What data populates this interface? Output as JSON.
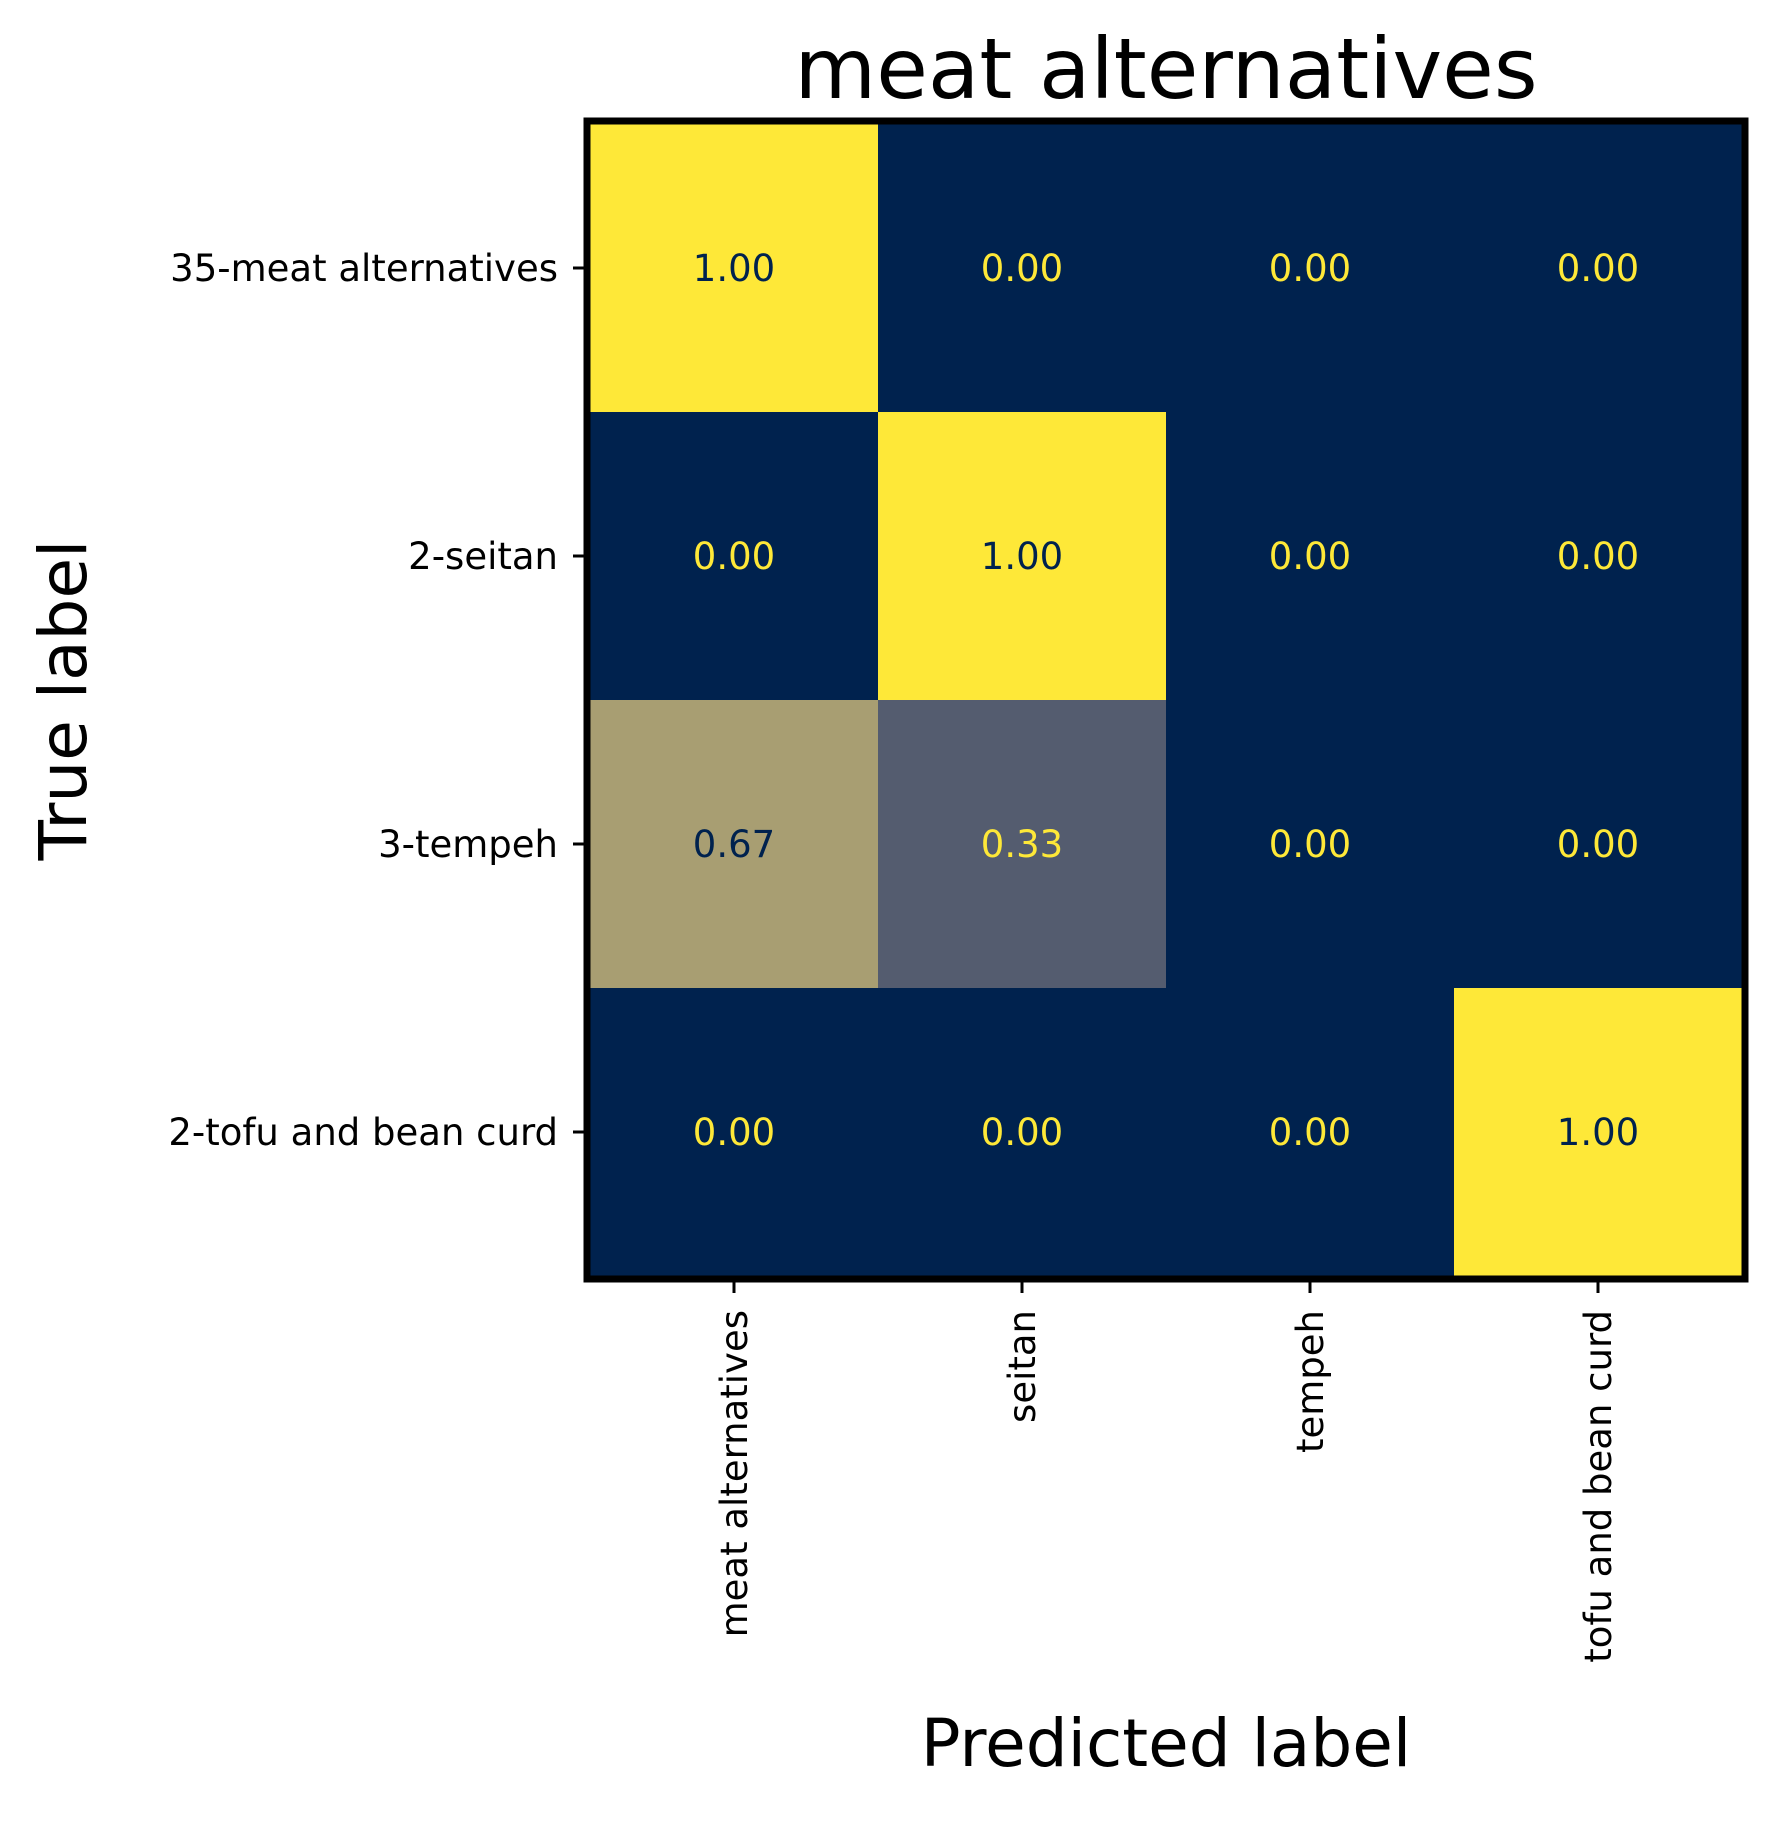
{
  "chart_data": {
    "type": "heatmap",
    "title": "meat alternatives",
    "xlabel": "Predicted label",
    "ylabel": "True label",
    "x_categories": [
      "meat alternatives",
      "seitan",
      "tempeh",
      "tofu and bean curd"
    ],
    "y_categories": [
      "35-meat alternatives",
      "2-seitan",
      "3-tempeh",
      "2-tofu and bean curd"
    ],
    "values": [
      [
        1.0,
        0.0,
        0.0,
        0.0
      ],
      [
        0.0,
        1.0,
        0.0,
        0.0
      ],
      [
        0.67,
        0.33,
        0.0,
        0.0
      ],
      [
        0.0,
        0.0,
        0.0,
        1.0
      ]
    ],
    "value_labels": [
      [
        "1.00",
        "0.00",
        "0.00",
        "0.00"
      ],
      [
        "0.00",
        "1.00",
        "0.00",
        "0.00"
      ],
      [
        "0.67",
        "0.33",
        "0.00",
        "0.00"
      ],
      [
        "0.00",
        "0.00",
        "0.00",
        "1.00"
      ]
    ],
    "vmin": 0,
    "vmax": 1,
    "colormap": "cividis",
    "colors": {
      "low": "#00224e",
      "high": "#fee838",
      "text_on_dark": "#fee838",
      "text_on_light": "#00224e"
    }
  }
}
